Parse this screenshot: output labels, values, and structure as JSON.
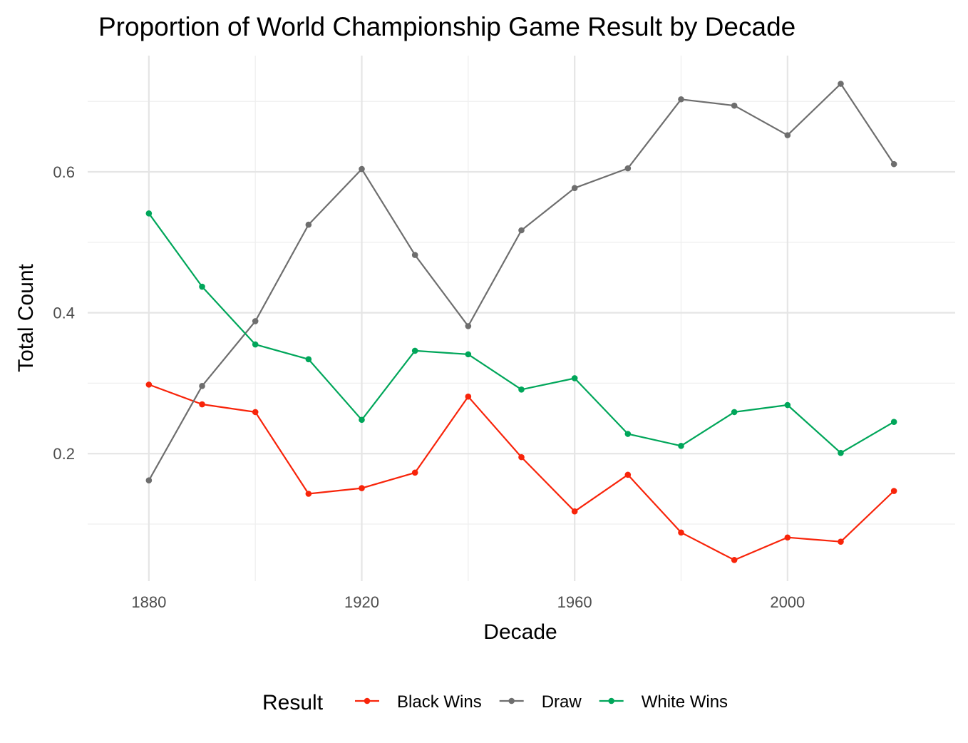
{
  "chart_data": {
    "type": "line",
    "title": "Proportion of World Championship Game Result by Decade",
    "xlabel": "Decade",
    "ylabel": "Total Count",
    "x": [
      1880,
      1890,
      1900,
      1910,
      1920,
      1930,
      1940,
      1950,
      1960,
      1970,
      1980,
      1990,
      2000,
      2010,
      2020
    ],
    "x_ticks": [
      1880,
      1920,
      1960,
      2000
    ],
    "x_tick_labels": [
      "1880",
      "1920",
      "1960",
      "2000"
    ],
    "y_ticks": [
      0.2,
      0.4,
      0.6
    ],
    "y_tick_labels": [
      "0.2",
      "0.4",
      "0.6"
    ],
    "y_minor_ticks": [
      0.1,
      0.3,
      0.5,
      0.7
    ],
    "xlim": [
      1868.5,
      2031.5
    ],
    "ylim": [
      0.019,
      0.765
    ],
    "grid": true,
    "legend": {
      "title": "Result",
      "position": "bottom"
    },
    "series": [
      {
        "name": "Black Wins",
        "color": "#f8240a",
        "values": [
          0.298,
          0.27,
          0.259,
          0.143,
          0.151,
          0.173,
          0.281,
          0.195,
          0.118,
          0.17,
          0.088,
          0.049,
          0.081,
          0.075,
          0.147
        ]
      },
      {
        "name": "Draw",
        "color": "#6e6e6e",
        "values": [
          0.162,
          0.296,
          0.388,
          0.525,
          0.604,
          0.482,
          0.381,
          0.517,
          0.577,
          0.605,
          0.703,
          0.694,
          0.652,
          0.725,
          0.611
        ]
      },
      {
        "name": "White Wins",
        "color": "#00a65a",
        "values": [
          0.541,
          0.437,
          0.355,
          0.334,
          0.248,
          0.346,
          0.341,
          0.291,
          0.307,
          0.228,
          0.211,
          0.259,
          0.269,
          0.201,
          0.245
        ]
      }
    ]
  }
}
